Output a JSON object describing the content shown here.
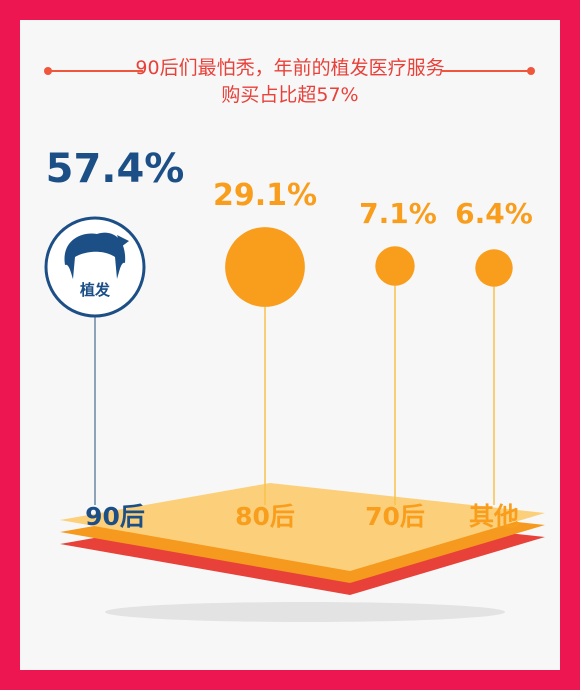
{
  "title": {
    "line1": "90后们最怕秃，年前的植发医疗服务",
    "line2": "购买占比超57%"
  },
  "chart_data": {
    "type": "bubble",
    "title": "90后们最怕秃，年前的植发医疗服务购买占比超57%",
    "categories": [
      "90后",
      "80后",
      "70后",
      "其他"
    ],
    "values": [
      57.4,
      29.1,
      7.1,
      6.4
    ],
    "value_labels": [
      "57.4%",
      "29.1%",
      "7.1%",
      "6.4%"
    ],
    "highlight_badge": "植发",
    "colors": {
      "highlight": "#1d4f87",
      "bubble": "#f99d1c",
      "frame": "#ed1651",
      "title": "#e8413a"
    }
  }
}
